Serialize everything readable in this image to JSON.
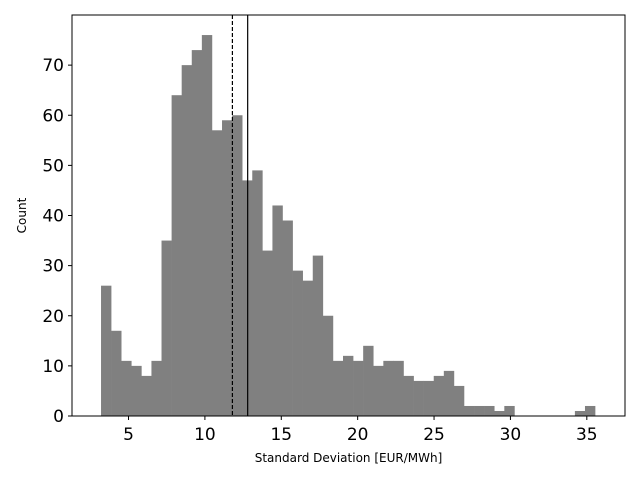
{
  "chart_data": {
    "type": "bar",
    "title": "",
    "xlabel": "Standard Deviation [EUR/MWh]",
    "ylabel": "Count",
    "xlim": [
      1.3,
      37.5
    ],
    "ylim": [
      0,
      80
    ],
    "xticks": [
      5,
      10,
      15,
      20,
      25,
      30,
      35
    ],
    "yticks": [
      0,
      10,
      20,
      30,
      40,
      50,
      60,
      70
    ],
    "bin_start": 3.2,
    "bin_width": 0.66,
    "counts": [
      26,
      17,
      11,
      10,
      8,
      11,
      35,
      64,
      70,
      73,
      76,
      57,
      59,
      60,
      47,
      49,
      33,
      42,
      39,
      29,
      27,
      32,
      20,
      11,
      12,
      11,
      14,
      10,
      11,
      11,
      8,
      7,
      7,
      8,
      9,
      6,
      2,
      2,
      2,
      1,
      2,
      0,
      0,
      0,
      0,
      0,
      0,
      1,
      2
    ],
    "bar_color": "#808080",
    "vlines": [
      {
        "x": 11.8,
        "style": "dashed",
        "color": "#000000"
      },
      {
        "x": 12.8,
        "style": "solid",
        "color": "#000000"
      }
    ],
    "grid": false
  }
}
